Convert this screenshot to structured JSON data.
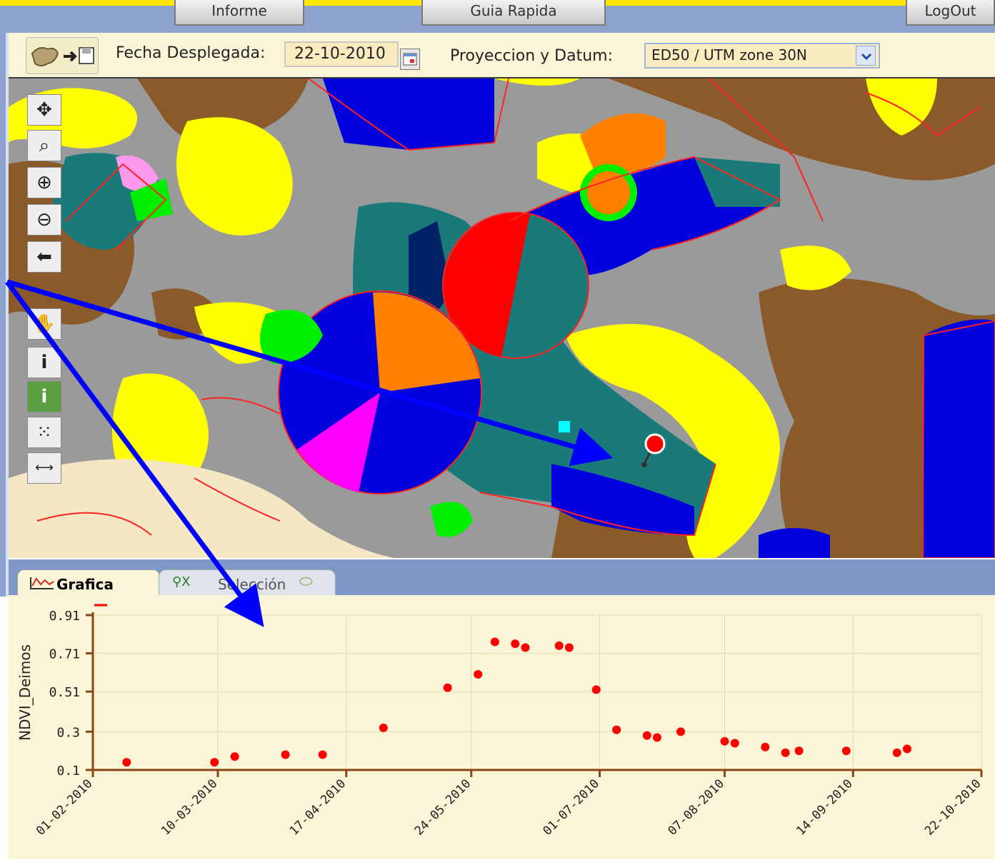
{
  "topbar": {
    "informe_label": "Informe",
    "guia_label": "Guia Rapida",
    "logout_label": "LogOut"
  },
  "toolbar": {
    "fecha_label": "Fecha Desplegada:",
    "fecha_value": "22-10-2010",
    "proyeccion_label": "Proyeccion y Datum:",
    "proyeccion_value": "ED50 / UTM zone 30N"
  },
  "map_tools": [
    "pan-arrows-icon",
    "zoom-extent-icon",
    "zoom-in-icon",
    "zoom-out-icon",
    "back-arrow-icon",
    "hand-pan-icon",
    "info-icon",
    "info-green-icon",
    "select-points-icon",
    "measure-icon"
  ],
  "tabs": {
    "grafica_label": "Grafica",
    "seleccion_label": "Selección"
  },
  "colors": {
    "accent_blue": "#0000ff",
    "point_red": "#ff0000",
    "axis_brown": "#8b4513",
    "panel_bg": "#fbf5d8",
    "frame_blue": "#8ea3cf"
  },
  "chart_data": {
    "type": "scatter",
    "ylabel": "NDVI_Deimos",
    "yticks": [
      "0.91",
      "0.71",
      "0.51",
      "0.3",
      "0.1"
    ],
    "ylim": [
      0.1,
      0.91
    ],
    "xticks": [
      "01-02-2010",
      "10-03-2010",
      "17-04-2010",
      "24-05-2010",
      "01-07-2010",
      "07-08-2010",
      "14-09-2010",
      "22-10-2010"
    ],
    "xlim": [
      "2010-02-01",
      "2010-10-22"
    ],
    "grid": true,
    "series": [
      {
        "color": "#ff0000",
        "points": [
          {
            "x": "2010-02-11",
            "y": 0.14
          },
          {
            "x": "2010-03-09",
            "y": 0.14
          },
          {
            "x": "2010-03-15",
            "y": 0.17
          },
          {
            "x": "2010-03-30",
            "y": 0.18
          },
          {
            "x": "2010-04-10",
            "y": 0.18
          },
          {
            "x": "2010-04-28",
            "y": 0.32
          },
          {
            "x": "2010-05-17",
            "y": 0.53
          },
          {
            "x": "2010-05-26",
            "y": 0.6
          },
          {
            "x": "2010-05-31",
            "y": 0.77
          },
          {
            "x": "2010-06-06",
            "y": 0.76
          },
          {
            "x": "2010-06-09",
            "y": 0.74
          },
          {
            "x": "2010-06-19",
            "y": 0.75
          },
          {
            "x": "2010-06-22",
            "y": 0.74
          },
          {
            "x": "2010-06-30",
            "y": 0.52
          },
          {
            "x": "2010-07-06",
            "y": 0.31
          },
          {
            "x": "2010-07-15",
            "y": 0.28
          },
          {
            "x": "2010-07-18",
            "y": 0.27
          },
          {
            "x": "2010-07-25",
            "y": 0.3
          },
          {
            "x": "2010-08-07",
            "y": 0.25
          },
          {
            "x": "2010-08-10",
            "y": 0.24
          },
          {
            "x": "2010-08-19",
            "y": 0.22
          },
          {
            "x": "2010-08-25",
            "y": 0.19
          },
          {
            "x": "2010-08-29",
            "y": 0.2
          },
          {
            "x": "2010-09-12",
            "y": 0.2
          },
          {
            "x": "2010-09-27",
            "y": 0.19
          },
          {
            "x": "2010-09-30",
            "y": 0.21
          }
        ]
      }
    ]
  }
}
